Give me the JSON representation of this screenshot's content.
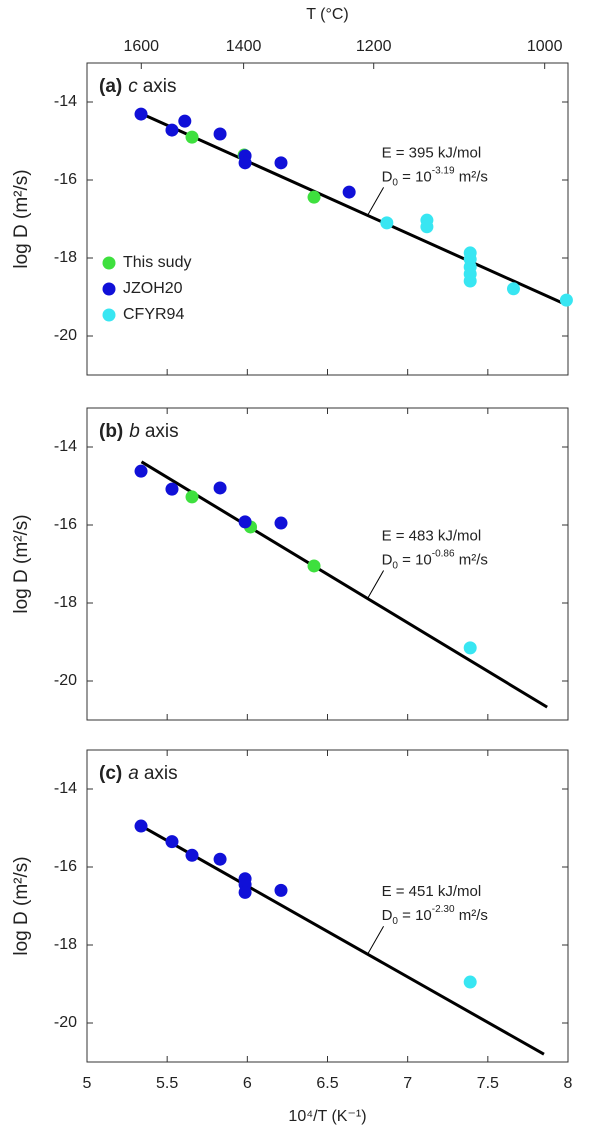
{
  "chart_data": [
    {
      "type": "scatter",
      "panel_label": "(a)",
      "axis_name": "c",
      "axis_word": "axis",
      "ylabel": "log D (m²/s)",
      "xlim": [
        5,
        8
      ],
      "xticks": [
        5,
        5.5,
        6,
        6.5,
        7,
        7.5,
        8
      ],
      "ylim": [
        -21,
        -13
      ],
      "yticks": [
        -14,
        -16,
        -18,
        -20
      ],
      "top_axis": {
        "label": "T (°C)",
        "ticks": [
          1600,
          1400,
          1200,
          1000
        ]
      },
      "legend": "lower left",
      "series": [
        {
          "name": "This sudy",
          "color": "#3ee03e",
          "x": [
            5.655,
            5.98,
            6.416
          ],
          "values": [
            -14.9,
            -15.36,
            -16.44
          ]
        },
        {
          "name": "JZOH20",
          "color": "#1010d8",
          "x": [
            5.337,
            5.53,
            5.61,
            5.83,
            5.986,
            5.986,
            6.21,
            6.635
          ],
          "values": [
            -14.31,
            -14.72,
            -14.49,
            -14.82,
            -15.38,
            -15.56,
            -15.56,
            -16.31
          ]
        },
        {
          "name": "CFYR94",
          "color": "#38e6f2",
          "x": [
            6.87,
            7.12,
            7.12,
            7.39,
            7.39,
            7.39,
            7.39,
            7.39,
            7.66,
            7.99
          ],
          "values": [
            -17.1,
            -17.03,
            -17.2,
            -17.87,
            -18.03,
            -18.23,
            -18.41,
            -18.59,
            -18.79,
            -19.08
          ]
        }
      ],
      "fit_line": {
        "x": [
          5.34,
          7.99
        ],
        "y": [
          -14.3,
          -19.2
        ]
      },
      "annotation": {
        "energy": "E = 395 kJ/mol",
        "d_base": "D",
        "d_sub": "0",
        "d_mid": " = 10",
        "d_exp": "-3.19",
        "d_unit": " m²/s"
      }
    },
    {
      "type": "scatter",
      "panel_label": "(b)",
      "axis_name": "b",
      "axis_word": "axis",
      "ylabel": "log D (m²/s)",
      "xlim": [
        5,
        8
      ],
      "xticks": [
        5,
        5.5,
        6,
        6.5,
        7,
        7.5,
        8
      ],
      "ylim": [
        -21,
        -13
      ],
      "yticks": [
        -14,
        -16,
        -18,
        -20
      ],
      "series": [
        {
          "name": "This sudy",
          "color": "#3ee03e",
          "x": [
            5.655,
            6.02,
            6.416
          ],
          "values": [
            -15.28,
            -16.05,
            -17.05
          ]
        },
        {
          "name": "JZOH20",
          "color": "#1010d8",
          "x": [
            5.337,
            5.53,
            5.83,
            5.986,
            6.21
          ],
          "values": [
            -14.62,
            -15.08,
            -15.05,
            -15.92,
            -15.95
          ]
        },
        {
          "name": "CFYR94",
          "color": "#38e6f2",
          "x": [
            7.39
          ],
          "values": [
            -19.15
          ]
        }
      ],
      "fit_line": {
        "x": [
          5.34,
          7.87
        ],
        "y": [
          -14.38,
          -20.67
        ]
      },
      "annotation": {
        "energy": "E = 483 kJ/mol",
        "d_base": "D",
        "d_sub": "0",
        "d_mid": " = 10",
        "d_exp": "-0.86",
        "d_unit": " m²/s"
      }
    },
    {
      "type": "scatter",
      "panel_label": "(c)",
      "axis_name": "a",
      "axis_word": "axis",
      "ylabel": "log D (m²/s)",
      "xlabel": "10⁴/T (K⁻¹)",
      "xlim": [
        5,
        8
      ],
      "xticks": [
        5,
        5.5,
        6,
        6.5,
        7,
        7.5,
        8
      ],
      "ylim": [
        -21,
        -13
      ],
      "yticks": [
        -14,
        -16,
        -18,
        -20
      ],
      "series": [
        {
          "name": "JZOH20",
          "color": "#1010d8",
          "x": [
            5.337,
            5.53,
            5.655,
            5.83,
            5.986,
            5.986,
            5.986,
            6.21
          ],
          "values": [
            -14.95,
            -15.35,
            -15.7,
            -15.8,
            -16.3,
            -16.45,
            -16.65,
            -16.6
          ]
        },
        {
          "name": "CFYR94",
          "color": "#38e6f2",
          "x": [
            7.39
          ],
          "values": [
            -18.95
          ]
        }
      ],
      "fit_line": {
        "x": [
          5.34,
          7.85
        ],
        "y": [
          -14.95,
          -20.8
        ]
      },
      "annotation": {
        "energy": "E = 451 kJ/mol",
        "d_base": "D",
        "d_sub": "0",
        "d_mid": " = 10",
        "d_exp": "-2.30",
        "d_unit": " m²/s"
      }
    }
  ]
}
